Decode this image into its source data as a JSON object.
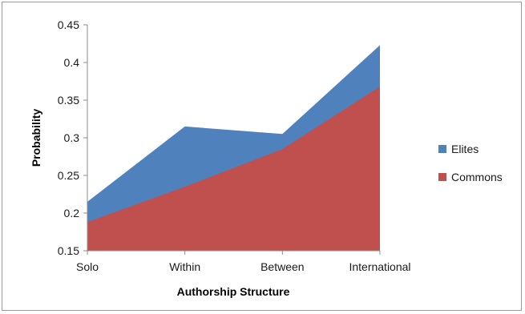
{
  "chart_data": {
    "type": "area",
    "categories": [
      "Solo",
      "Within",
      "Between",
      "International"
    ],
    "series": [
      {
        "name": "Elites",
        "values": [
          0.215,
          0.315,
          0.305,
          0.423
        ],
        "color": "#4f81bd"
      },
      {
        "name": "Commons",
        "values": [
          0.188,
          0.235,
          0.285,
          0.368
        ],
        "color": "#c0504d"
      }
    ],
    "xlabel": "Authorship Structure",
    "ylabel": "Probability",
    "ylim": [
      0.15,
      0.45
    ],
    "yticks": [
      "0.15",
      "0.2",
      "0.25",
      "0.3",
      "0.35",
      "0.4",
      "0.45"
    ],
    "grid": false,
    "legend_position": "right"
  }
}
